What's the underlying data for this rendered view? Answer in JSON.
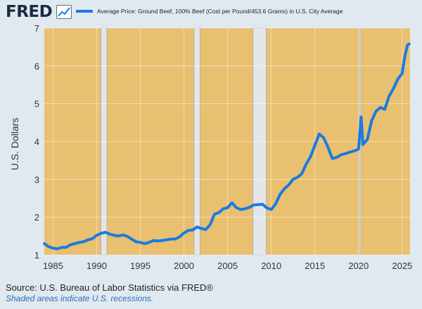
{
  "header": {
    "logo_text": "FRED",
    "logo_icon": "trend-line-icon"
  },
  "chart_data": {
    "type": "line",
    "title": "",
    "xlabel": "",
    "ylabel": "U.S. Dollars",
    "xlim": [
      1984.0,
      2025.9
    ],
    "ylim": [
      1,
      7
    ],
    "grid": true,
    "legend_position": "top-left",
    "plot_background": "#e8c070",
    "recession_color": "#e3e6ea",
    "x_ticks": [
      {
        "value": 1985,
        "label": "1985"
      },
      {
        "value": 1990,
        "label": "1990"
      },
      {
        "value": 1995,
        "label": "1995"
      },
      {
        "value": 2000,
        "label": "2000"
      },
      {
        "value": 2005,
        "label": "2005"
      },
      {
        "value": 2010,
        "label": "2010"
      },
      {
        "value": 2015,
        "label": "2015"
      },
      {
        "value": 2020,
        "label": "2020"
      },
      {
        "value": 2025,
        "label": "2025"
      }
    ],
    "y_ticks": [
      {
        "value": 1,
        "label": "1"
      },
      {
        "value": 2,
        "label": "2"
      },
      {
        "value": 3,
        "label": "3"
      },
      {
        "value": 4,
        "label": "4"
      },
      {
        "value": 5,
        "label": "5"
      },
      {
        "value": 6,
        "label": "6"
      },
      {
        "value": 7,
        "label": "7"
      }
    ],
    "recessions": [
      {
        "start": "1990-07",
        "end": "1991-03"
      },
      {
        "start": "2001-03",
        "end": "2001-11"
      },
      {
        "start": "2007-12",
        "end": "2009-06"
      },
      {
        "start": "2020-02",
        "end": "2020-04"
      }
    ],
    "series": [
      {
        "name": "Average Price: Ground Beef, 100% Beef (Cost per Pound/453.6 Grams) in U.S. City Average",
        "color": "#1a7be0",
        "x": [
          1984.0,
          1984.5,
          1985.0,
          1985.5,
          1986.0,
          1986.5,
          1987.0,
          1987.5,
          1988.0,
          1988.5,
          1989.0,
          1989.5,
          1990.0,
          1990.5,
          1991.0,
          1991.5,
          1992.0,
          1992.5,
          1993.0,
          1993.5,
          1994.0,
          1994.5,
          1995.0,
          1995.5,
          1996.0,
          1996.5,
          1997.0,
          1997.5,
          1998.0,
          1998.5,
          1999.0,
          1999.5,
          2000.0,
          2000.5,
          2001.0,
          2001.5,
          2002.0,
          2002.5,
          2003.0,
          2003.5,
          2004.0,
          2004.5,
          2005.0,
          2005.5,
          2006.0,
          2006.5,
          2007.0,
          2007.5,
          2008.0,
          2008.5,
          2009.0,
          2009.5,
          2010.0,
          2010.5,
          2011.0,
          2011.5,
          2012.0,
          2012.5,
          2013.0,
          2013.5,
          2014.0,
          2014.5,
          2015.0,
          2015.5,
          2016.0,
          2016.5,
          2017.0,
          2017.5,
          2018.0,
          2018.5,
          2019.0,
          2019.5,
          2020.0,
          2020.3,
          2020.5,
          2021.0,
          2021.5,
          2022.0,
          2022.5,
          2023.0,
          2023.5,
          2024.0,
          2024.5,
          2025.0,
          2025.3,
          2025.6,
          2025.8
        ],
        "values": [
          1.3,
          1.22,
          1.18,
          1.16,
          1.2,
          1.2,
          1.27,
          1.3,
          1.33,
          1.35,
          1.4,
          1.43,
          1.52,
          1.57,
          1.6,
          1.55,
          1.52,
          1.5,
          1.53,
          1.49,
          1.42,
          1.35,
          1.33,
          1.3,
          1.33,
          1.38,
          1.37,
          1.38,
          1.4,
          1.42,
          1.42,
          1.48,
          1.58,
          1.65,
          1.66,
          1.74,
          1.7,
          1.67,
          1.8,
          2.08,
          2.12,
          2.22,
          2.25,
          2.38,
          2.25,
          2.2,
          2.22,
          2.26,
          2.32,
          2.33,
          2.34,
          2.24,
          2.2,
          2.35,
          2.6,
          2.75,
          2.85,
          3.0,
          3.05,
          3.15,
          3.4,
          3.6,
          3.9,
          4.2,
          4.1,
          3.85,
          3.55,
          3.58,
          3.65,
          3.68,
          3.72,
          3.75,
          3.8,
          4.65,
          3.92,
          4.05,
          4.55,
          4.8,
          4.9,
          4.85,
          5.2,
          5.4,
          5.65,
          5.8,
          6.25,
          6.55,
          6.58
        ]
      }
    ]
  },
  "footer": {
    "source": "Source: U.S. Bureau of Labor Statistics via FRED®",
    "recession_note": "Shaded areas indicate U.S. recessions."
  }
}
